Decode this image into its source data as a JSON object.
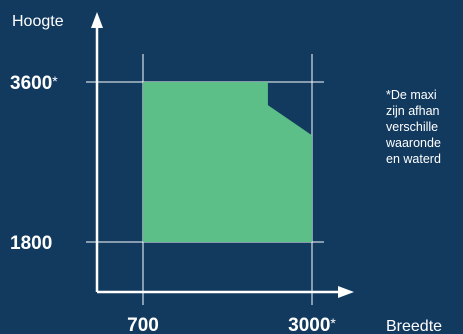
{
  "chart_data": {
    "type": "area",
    "xlabel": "Breedte",
    "ylabel": "Hoogte",
    "x_ticks": [
      {
        "value": 700,
        "label": "700",
        "mark": ""
      },
      {
        "value": 3000,
        "label": "3000",
        "mark": "*"
      }
    ],
    "y_ticks": [
      {
        "value": 1800,
        "label": "1800",
        "mark": ""
      },
      {
        "value": 3600,
        "label": "3600",
        "mark": "*"
      }
    ],
    "region": {
      "name": "",
      "color": "#5bbf87",
      "points": [
        {
          "x": 700,
          "y": 1800
        },
        {
          "x": 700,
          "y": 3600
        },
        {
          "x": 2400,
          "y": 3600
        },
        {
          "x": 2400,
          "y": 3340
        },
        {
          "x": 3000,
          "y": 3000
        },
        {
          "x": 3000,
          "y": 1800
        }
      ]
    },
    "note_lines": [
      "*De maxi",
      "zijn afhan",
      "verschille",
      "waaronde",
      "en waterd"
    ],
    "colors": {
      "background": "#123a5f",
      "axis": "#ffffff",
      "gridline": "#ffffff",
      "region": "#5bbf87",
      "text": "#ffffff"
    },
    "grid": true,
    "legend": "none"
  }
}
